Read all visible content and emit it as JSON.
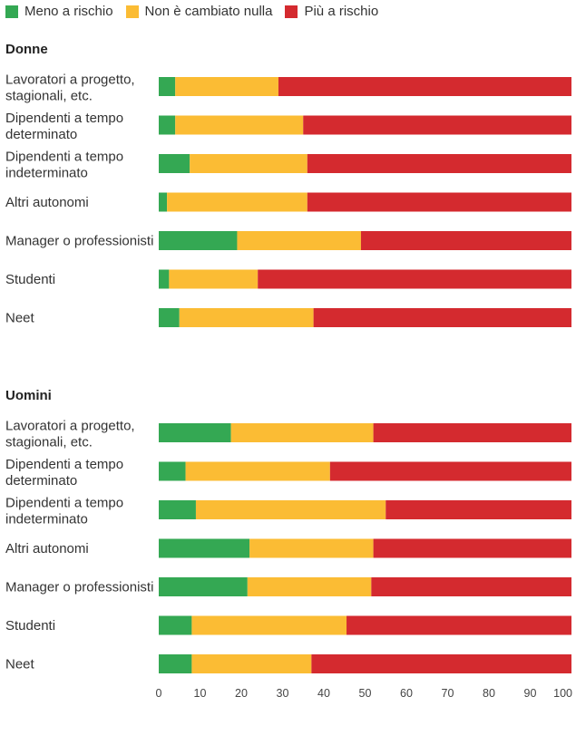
{
  "legend": {
    "items": [
      {
        "label": "Meno a rischio",
        "color": "#34a853"
      },
      {
        "label": "Non è cambiato nulla",
        "color": "#fbbc34"
      },
      {
        "label": "Più a rischio",
        "color": "#d42a2f"
      }
    ]
  },
  "chart_data": {
    "type": "bar",
    "orientation": "horizontal",
    "stacked": true,
    "xlim": [
      0,
      100
    ],
    "xticks": [
      "0",
      "10",
      "20",
      "30",
      "40",
      "50",
      "60",
      "70",
      "80",
      "90",
      "100"
    ],
    "series_names": [
      "Meno a rischio",
      "Non è cambiato nulla",
      "Più a rischio"
    ],
    "series_colors": [
      "#34a853",
      "#fbbc34",
      "#d42a2f"
    ],
    "groups": [
      {
        "title": "Donne",
        "categories": [
          {
            "label": [
              "Lavoratori a progetto,",
              "stagionali, etc."
            ],
            "values": [
              4,
              25,
              71
            ]
          },
          {
            "label": [
              "Dipendenti a tempo",
              "determinato"
            ],
            "values": [
              4,
              31,
              65
            ]
          },
          {
            "label": [
              "Dipendenti a tempo",
              "indeterminato"
            ],
            "values": [
              7.5,
              28.5,
              64
            ]
          },
          {
            "label": [
              "Altri autonomi"
            ],
            "values": [
              2,
              34,
              64
            ]
          },
          {
            "label": [
              "Manager o professionisti"
            ],
            "values": [
              19,
              30,
              51
            ]
          },
          {
            "label": [
              "Studenti"
            ],
            "values": [
              2.5,
              21.5,
              76
            ]
          },
          {
            "label": [
              "Neet"
            ],
            "values": [
              5,
              32.5,
              62.5
            ]
          }
        ]
      },
      {
        "title": "Uomini",
        "categories": [
          {
            "label": [
              "Lavoratori a progetto,",
              "stagionali, etc."
            ],
            "values": [
              17.5,
              34.5,
              48
            ]
          },
          {
            "label": [
              "Dipendenti a tempo",
              "determinato"
            ],
            "values": [
              6.5,
              35,
              58.5
            ]
          },
          {
            "label": [
              "Dipendenti a tempo",
              "indeterminato"
            ],
            "values": [
              9,
              46,
              45
            ]
          },
          {
            "label": [
              "Altri autonomi"
            ],
            "values": [
              22,
              30,
              48
            ]
          },
          {
            "label": [
              "Manager o professionisti"
            ],
            "values": [
              21.5,
              30,
              48.5
            ]
          },
          {
            "label": [
              "Studenti"
            ],
            "values": [
              8,
              37.5,
              54.5
            ]
          },
          {
            "label": [
              "Neet"
            ],
            "values": [
              8,
              29,
              63
            ]
          }
        ]
      }
    ]
  }
}
